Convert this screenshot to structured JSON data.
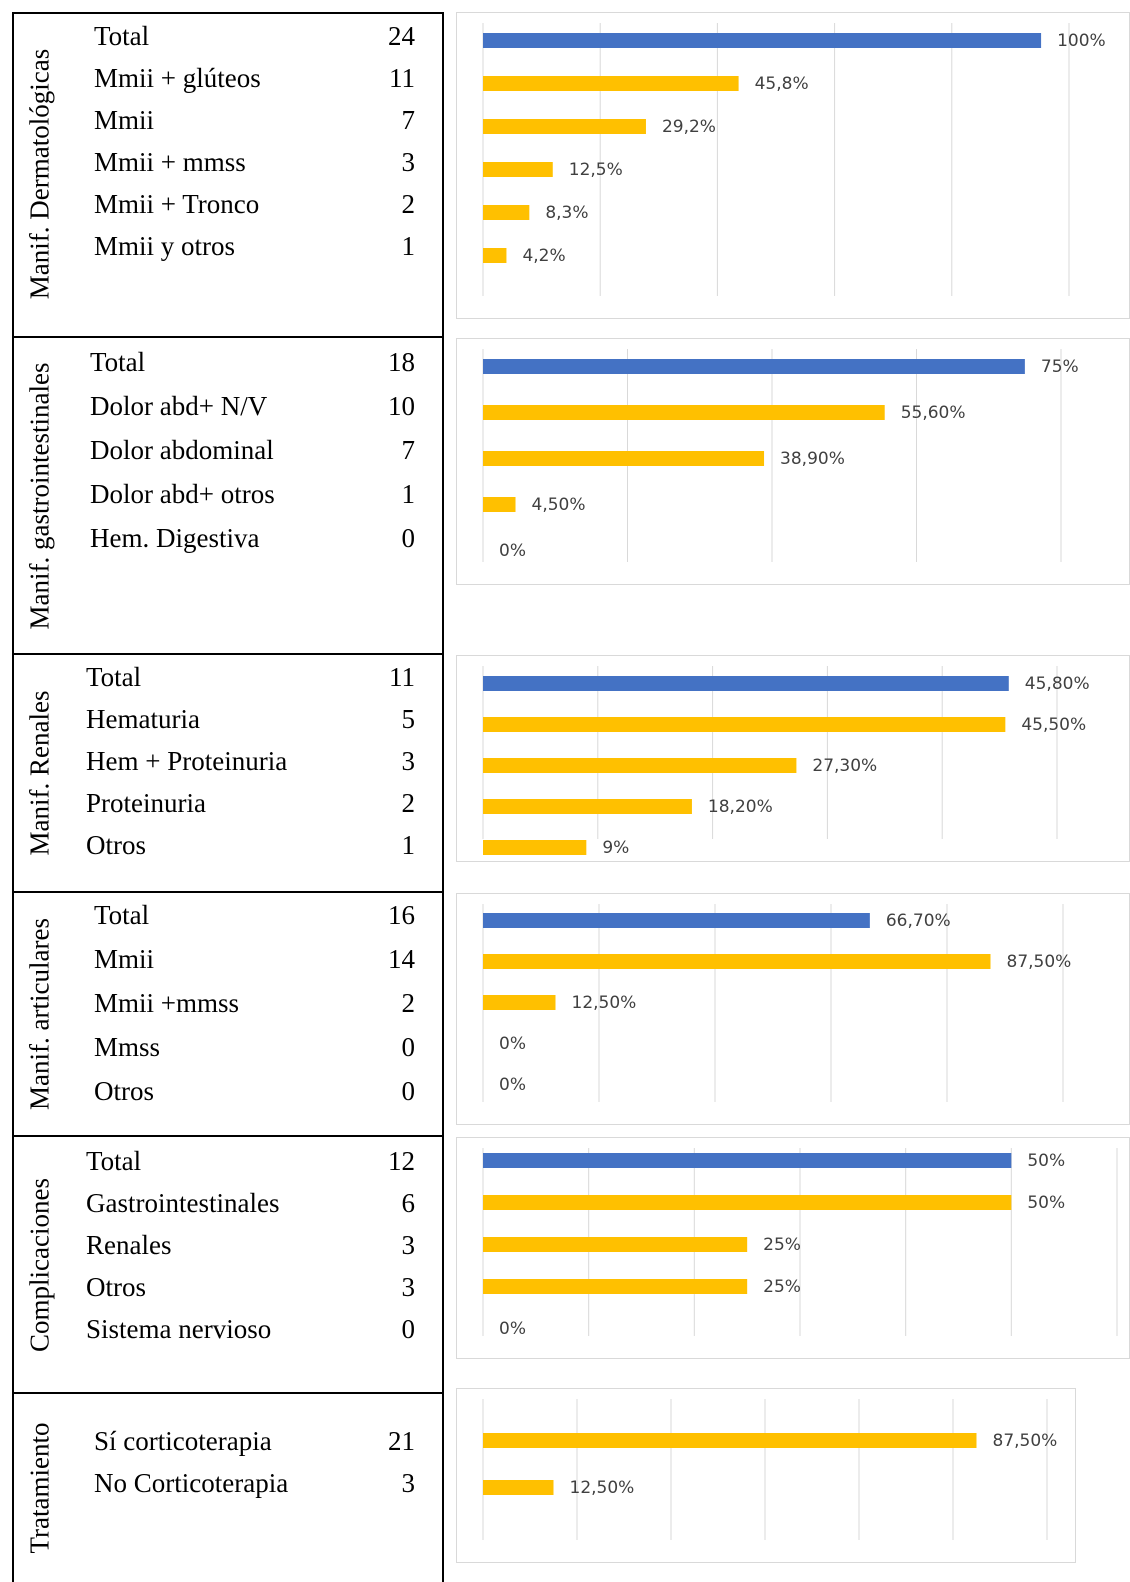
{
  "chart_data": [
    {
      "type": "bar",
      "orientation": "horizontal",
      "section": "Manif. Dermatológicas",
      "categories": [
        "Total",
        "Mmii + glúteos",
        "Mmii",
        "Mmii + mmss",
        "Mmii + Tronco",
        "Mmii y otros"
      ],
      "counts": [
        "24",
        "11",
        "7",
        "3",
        "2",
        "1"
      ],
      "values": [
        100,
        45.8,
        29.2,
        12.5,
        8.3,
        4.2
      ],
      "value_labels": [
        "100%",
        "45,8%",
        "29,2%",
        "12,5%",
        "8,3%",
        "4,2%"
      ],
      "xlim": [
        0,
        105
      ],
      "grid": true
    },
    {
      "type": "bar",
      "orientation": "horizontal",
      "section": "Manif.  gastrointestinales",
      "categories": [
        "Total",
        "Dolor abd+ N/V",
        "Dolor abdominal",
        "Dolor abd+ otros",
        "Hem. Digestiva"
      ],
      "counts": [
        "18",
        "10",
        "7",
        "1",
        "0"
      ],
      "values": [
        75,
        55.6,
        38.9,
        4.5,
        0
      ],
      "value_labels": [
        "75%",
        "55,60%",
        "38,90%",
        "4,50%",
        "0%"
      ],
      "xlim": [
        0,
        80
      ],
      "grid": true
    },
    {
      "type": "bar",
      "orientation": "horizontal",
      "section": "Manif.  Renales",
      "categories": [
        "Total",
        "Hematuria",
        "Hem + Proteinuria",
        "Proteinuria",
        "Otros"
      ],
      "counts": [
        "11",
        "5",
        "3",
        "2",
        "1"
      ],
      "values": [
        45.8,
        45.5,
        27.3,
        18.2,
        9
      ],
      "value_labels": [
        "45,80%",
        "45,50%",
        "27,30%",
        "18,20%",
        "9%"
      ],
      "xlim": [
        0,
        50
      ],
      "grid": true
    },
    {
      "type": "bar",
      "orientation": "horizontal",
      "section": "Manif. articulares",
      "categories": [
        "Total",
        "Mmii",
        "Mmii +mmss",
        "Mmss",
        "Otros"
      ],
      "counts": [
        "16",
        "14",
        "2",
        "0",
        "0"
      ],
      "values": [
        66.7,
        87.5,
        12.5,
        0,
        0
      ],
      "value_labels": [
        "66,70%",
        "87,50%",
        "12,50%",
        "0%",
        "0%"
      ],
      "xlim": [
        0,
        100
      ],
      "grid": true
    },
    {
      "type": "bar",
      "orientation": "horizontal",
      "section": "Complicaciones",
      "categories": [
        "Total",
        "Gastrointestinales",
        "Renales",
        "Otros",
        "Sistema nervioso"
      ],
      "counts": [
        "12",
        "6",
        "3",
        "3",
        "0"
      ],
      "values": [
        50,
        50,
        25,
        25,
        0
      ],
      "value_labels": [
        "50%",
        "50%",
        "25%",
        "25%",
        "0%"
      ],
      "xlim": [
        0,
        60
      ],
      "grid": true
    },
    {
      "type": "bar",
      "orientation": "horizontal",
      "section": "Tratamiento",
      "categories": [
        "Sí corticoterapia",
        "No Corticoterapia"
      ],
      "counts": [
        "21",
        "3"
      ],
      "values": [
        87.5,
        12.5
      ],
      "value_labels": [
        "87,50%",
        "12,50%"
      ],
      "xlim": [
        0,
        100
      ],
      "grid": true
    }
  ],
  "colors": {
    "total_bar": "#4472c4",
    "item_bar": "#ffc000",
    "gridline": "#d9d9d9",
    "value_label": "#404040"
  }
}
